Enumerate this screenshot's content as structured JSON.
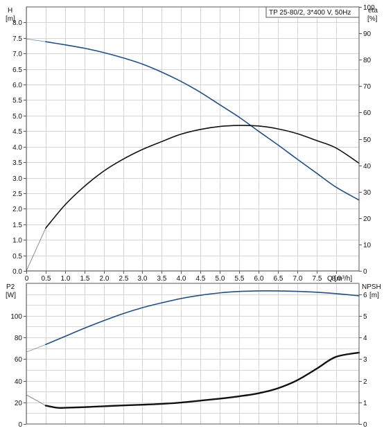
{
  "chart_data": [
    {
      "type": "line",
      "title": "TP 25-80/2, 3*400 V, 50Hz",
      "xlabel": "Q [m³/h]",
      "ylabel_left": [
        "H",
        "[m]"
      ],
      "ylabel_right": [
        "eta",
        "[%]"
      ],
      "xlim": [
        0,
        8.6
      ],
      "ylim_left": [
        0,
        8.5
      ],
      "ylim_right": [
        0,
        100
      ],
      "grid": true,
      "x_ticks": [
        "0",
        "0.5",
        "1.0",
        "1.5",
        "2.0",
        "2.5",
        "3.0",
        "3.5",
        "4.0",
        "4.5",
        "5.0",
        "5.5",
        "6.0",
        "6.5",
        "7.0",
        "7.5",
        "8.0"
      ],
      "y_left_ticks": [
        "0.0",
        "0.5",
        "1.0",
        "1.5",
        "2.0",
        "2.5",
        "3.0",
        "3.5",
        "4.0",
        "4.5",
        "5.0",
        "5.5",
        "6.0",
        "6.5",
        "7.0",
        "7.5",
        "8.0"
      ],
      "y_right_ticks": [
        "0",
        "10",
        "20",
        "30",
        "40",
        "50",
        "60",
        "70",
        "80",
        "90",
        "100"
      ],
      "series": [
        {
          "axis": "left",
          "color": "#1c4f8c",
          "x": [
            0,
            0.5,
            1.0,
            1.5,
            2.0,
            2.5,
            3.0,
            3.5,
            4.0,
            4.5,
            5.0,
            5.5,
            6.0,
            6.5,
            7.0,
            7.5,
            8.0,
            8.6
          ],
          "values": [
            7.47,
            7.38,
            7.28,
            7.17,
            7.03,
            6.86,
            6.66,
            6.4,
            6.1,
            5.75,
            5.35,
            4.95,
            4.5,
            4.06,
            3.6,
            3.15,
            2.7,
            2.28
          ],
          "dashed_until": 0.5
        },
        {
          "axis": "right",
          "color": "#111111",
          "x": [
            0,
            0.5,
            1.0,
            1.5,
            2.0,
            2.5,
            3.0,
            3.5,
            4.0,
            4.5,
            5.0,
            5.5,
            6.0,
            6.5,
            7.0,
            7.5,
            8.0,
            8.6
          ],
          "values": [
            0,
            16.2,
            25,
            32,
            37.8,
            42.3,
            46,
            49,
            51.8,
            53.6,
            54.7,
            55.1,
            54.9,
            53.8,
            52,
            49.4,
            46.6,
            40.8
          ],
          "dashed_until": 0.5
        }
      ]
    },
    {
      "type": "line",
      "ylabel_left": [
        "P2",
        "[W]"
      ],
      "ylabel_right": [
        "NPSH",
        "[m]"
      ],
      "xlim": [
        0,
        8.6
      ],
      "ylim_left": [
        0,
        130
      ],
      "ylim_right": [
        0,
        6.5
      ],
      "grid": true,
      "y_left_ticks": [
        "0",
        "20",
        "40",
        "60",
        "80",
        "100"
      ],
      "y_right_ticks": [
        "0",
        "1",
        "2",
        "3",
        "4",
        "5",
        "6"
      ],
      "series": [
        {
          "axis": "left",
          "color": "#1c4f8c",
          "x": [
            0,
            0.5,
            1.0,
            1.5,
            2.0,
            2.5,
            3.0,
            3.5,
            4.0,
            4.5,
            5.0,
            5.5,
            6.0,
            6.5,
            7.0,
            7.5,
            8.0,
            8.6
          ],
          "values": [
            66.5,
            73.5,
            81,
            88.5,
            95.5,
            102,
            107.5,
            112,
            116,
            119,
            121.2,
            122.5,
            123,
            123,
            122.6,
            121.8,
            120.5,
            118.5
          ],
          "dashed_until": 0.5
        },
        {
          "axis": "right",
          "color": "#111111",
          "x": [
            0,
            0.5,
            0.8,
            1.0,
            1.5,
            2.0,
            2.5,
            3.0,
            3.5,
            4.0,
            4.5,
            5.0,
            5.5,
            6.0,
            6.5,
            7.0,
            7.5,
            8.0,
            8.6
          ],
          "values": [
            1.35,
            0.85,
            0.75,
            0.75,
            0.78,
            0.82,
            0.86,
            0.89,
            0.93,
            0.99,
            1.08,
            1.17,
            1.28,
            1.42,
            1.65,
            2.02,
            2.55,
            3.1,
            3.3
          ],
          "dashed_until": 0.5
        }
      ]
    }
  ]
}
